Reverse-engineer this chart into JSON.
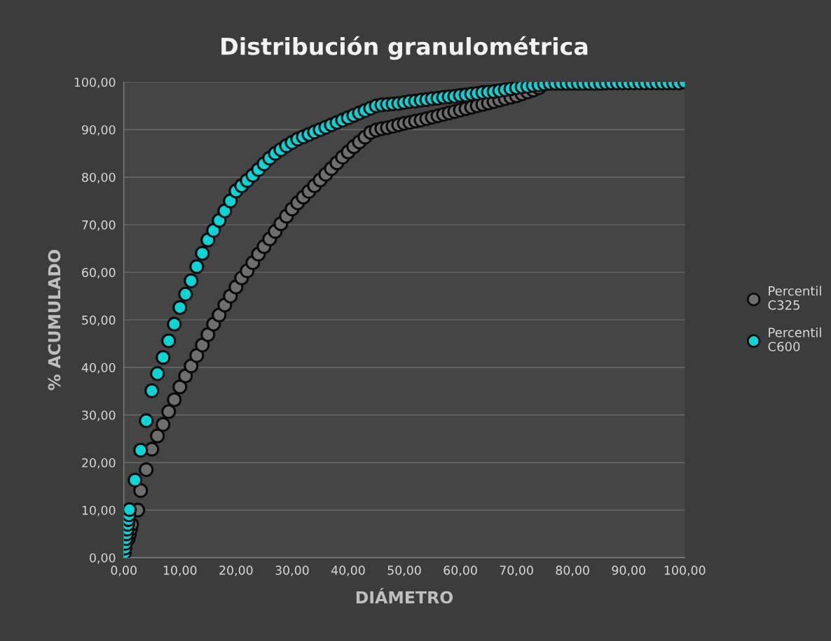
{
  "chart_data": {
    "type": "scatter",
    "title": "Distribución granulométrica",
    "xlabel": "DIÁMETRO",
    "ylabel": "% ACUMULADO",
    "xlim": [
      0,
      100
    ],
    "ylim": [
      0,
      100
    ],
    "xticks": [
      {
        "value": 0,
        "label": "0,00"
      },
      {
        "value": 10,
        "label": "10,00"
      },
      {
        "value": 20,
        "label": "20,00"
      },
      {
        "value": 30,
        "label": "30,00"
      },
      {
        "value": 40,
        "label": "40,00"
      },
      {
        "value": 50,
        "label": "50,00"
      },
      {
        "value": 60,
        "label": "60,00"
      },
      {
        "value": 70,
        "label": "70,00"
      },
      {
        "value": 80,
        "label": "80,00"
      },
      {
        "value": 90,
        "label": "90,00"
      },
      {
        "value": 100,
        "label": "100,00"
      }
    ],
    "yticks": [
      {
        "value": 0,
        "label": "0,00"
      },
      {
        "value": 10,
        "label": "10,00"
      },
      {
        "value": 20,
        "label": "20,00"
      },
      {
        "value": 30,
        "label": "30,00"
      },
      {
        "value": 40,
        "label": "40,00"
      },
      {
        "value": 50,
        "label": "50,00"
      },
      {
        "value": 60,
        "label": "60,00"
      },
      {
        "value": 70,
        "label": "70,00"
      },
      {
        "value": 80,
        "label": "80,00"
      },
      {
        "value": 90,
        "label": "90,00"
      },
      {
        "value": 100,
        "label": "100,00"
      }
    ],
    "grid": "y",
    "legend": "right",
    "marker": "circle",
    "series": [
      {
        "name": "Percentil C325",
        "color": "#6e6e6e",
        "x": [
          0.8,
          1.0,
          1.2,
          1.4,
          2.5,
          3,
          4,
          5,
          6,
          7,
          8,
          9,
          10,
          11,
          12,
          13,
          14,
          15,
          16,
          17,
          18,
          19,
          20,
          21,
          22,
          23,
          24,
          25,
          26,
          27,
          28,
          29,
          30,
          31,
          32,
          33,
          34,
          35,
          36,
          37,
          38,
          39,
          40,
          41,
          42,
          43,
          44,
          45,
          46,
          47,
          48,
          49,
          50,
          51,
          52,
          53,
          54,
          55,
          56,
          57,
          58,
          59,
          60,
          61,
          62,
          63,
          64,
          65,
          66,
          67,
          68,
          69,
          70,
          71,
          72,
          73,
          74
        ],
        "values": [
          4,
          5,
          6,
          7,
          10.0,
          14.1,
          18.5,
          22.8,
          25.6,
          28.0,
          30.7,
          33.2,
          35.9,
          38.2,
          40.3,
          42.5,
          44.7,
          46.9,
          49.1,
          51.0,
          53.1,
          55.0,
          56.9,
          58.8,
          60.3,
          62.0,
          63.8,
          65.4,
          67.0,
          68.6,
          70.2,
          71.8,
          73.3,
          74.6,
          75.8,
          77.0,
          78.2,
          79.4,
          80.6,
          81.8,
          83.0,
          84.2,
          85.3,
          86.4,
          87.4,
          88.4,
          89.4,
          89.9,
          90.2,
          90.4,
          90.7,
          91.0,
          91.3,
          91.5,
          91.8,
          92.0,
          92.3,
          92.6,
          92.9,
          93.2,
          93.5,
          93.8,
          94.1,
          94.4,
          94.7,
          95.0,
          95.3,
          95.6,
          95.9,
          96.2,
          96.5,
          96.8,
          97.1,
          97.5,
          97.9,
          98.3,
          98.8
        ]
      },
      {
        "name": "Percentil C600",
        "color": "#00d8d8",
        "x": [
          0.1,
          0.2,
          0.3,
          0.4,
          0.5,
          0.6,
          0.7,
          0.8,
          0.9,
          1,
          2,
          3,
          4,
          5,
          6,
          7,
          8,
          9,
          10,
          11,
          12,
          13,
          14,
          15,
          16,
          17,
          18,
          19,
          20,
          21,
          22,
          23,
          24,
          25,
          26,
          27,
          28,
          29,
          30,
          31,
          32,
          33,
          34,
          35,
          36,
          37,
          38,
          39,
          40,
          41,
          42,
          43,
          44,
          45,
          46,
          47,
          48,
          49,
          50,
          51,
          52,
          53,
          54,
          55,
          56,
          57,
          58,
          59,
          60,
          61,
          62,
          63,
          64,
          65,
          66,
          67,
          68,
          69,
          70,
          71,
          72,
          73,
          74,
          75,
          76,
          77,
          78,
          79,
          80,
          81,
          82,
          83,
          84,
          85,
          86,
          87,
          88,
          89,
          90,
          91,
          92,
          93,
          94,
          95,
          96,
          97,
          98,
          99,
          100
        ],
        "values": [
          1,
          2,
          3,
          4,
          5,
          6,
          7,
          8,
          9,
          10.1,
          16.3,
          22.6,
          28.8,
          35.1,
          38.7,
          42.1,
          45.6,
          49.1,
          52.6,
          55.4,
          58.2,
          61.2,
          64.0,
          66.8,
          68.8,
          70.9,
          72.9,
          75.0,
          77.1,
          78.2,
          79.3,
          80.4,
          81.6,
          82.8,
          84.0,
          85.0,
          85.8,
          86.6,
          87.3,
          88.0,
          88.5,
          89.0,
          89.5,
          90.0,
          90.5,
          91.0,
          91.5,
          92.0,
          92.5,
          93.0,
          93.5,
          94.0,
          94.5,
          95.0,
          95.2,
          95.3,
          95.4,
          95.5,
          95.7,
          95.9,
          96.0,
          96.2,
          96.3,
          96.5,
          96.6,
          96.8,
          96.9,
          97.0,
          97.2,
          97.3,
          97.5,
          97.6,
          97.8,
          97.9,
          98.0,
          98.2,
          98.4,
          98.6,
          98.8,
          99.0,
          99.1,
          99.3,
          99.4,
          99.6,
          99.7,
          99.7,
          99.7,
          99.7,
          99.7,
          99.7,
          99.7,
          99.7,
          99.7,
          99.7,
          99.8,
          99.8,
          99.8,
          99.8,
          99.8,
          99.8,
          99.8,
          99.8,
          99.8,
          99.8,
          99.8,
          99.8,
          99.8,
          99.8,
          100.0
        ]
      }
    ]
  }
}
